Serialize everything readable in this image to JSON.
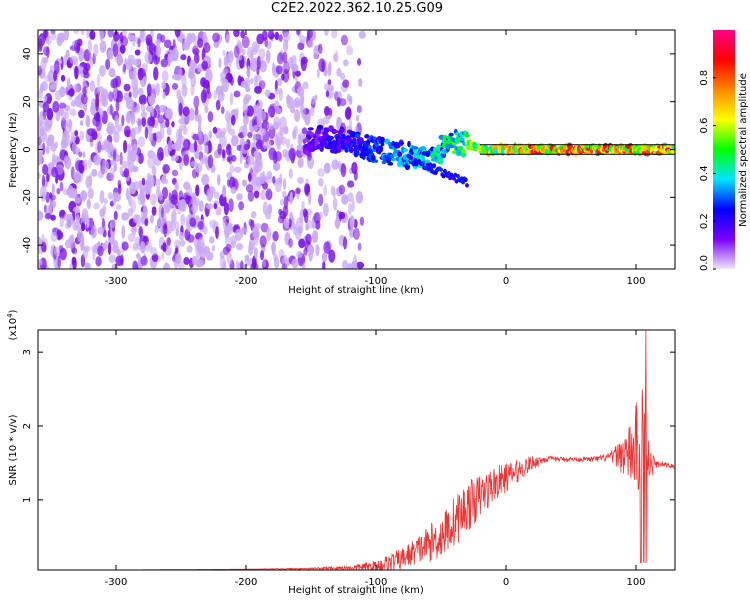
{
  "title": "C2E2.2022.362.10.25.G09",
  "colors": {
    "snr_line": "#ee3333",
    "background": "#ffffff",
    "axis": "#000000"
  },
  "chart_data": [
    {
      "type": "heatmap",
      "xlabel": "Height of straight line (km)",
      "ylabel": "Frequency (Hz)",
      "xlim": [
        -360,
        130
      ],
      "ylim": [
        -50,
        50
      ],
      "x_ticks": [
        -300,
        -200,
        -100,
        0,
        100
      ],
      "y_ticks": [
        -40,
        -20,
        0,
        20,
        40
      ],
      "colorbar": {
        "label": "Normalized spectral amplitude",
        "range": [
          0.0,
          1.0
        ],
        "ticks": [
          "0.0",
          "0.2",
          "0.4",
          "0.6",
          "0.8"
        ],
        "colors": [
          "#f0e6ff",
          "#7a00ff",
          "#0000ff",
          "#00e5ff",
          "#00ff00",
          "#ffff00",
          "#ff8800",
          "#ff0000",
          "#ff0088"
        ]
      },
      "noise_region": {
        "x_range": [
          -360,
          -110
        ],
        "freq_range": [
          -50,
          50
        ],
        "amplitude": 0.1
      },
      "signal_track": {
        "x": [
          -155,
          -140,
          -120,
          -100,
          -80,
          -60,
          -45,
          -35,
          -20,
          0,
          20,
          50,
          80,
          100,
          110,
          130
        ],
        "freq": [
          3,
          5,
          3,
          0,
          -2,
          -4,
          2,
          3,
          0,
          0,
          0,
          0,
          0,
          0,
          0,
          0
        ],
        "amplitude": [
          0.15,
          0.2,
          0.25,
          0.3,
          0.35,
          0.4,
          0.45,
          0.5,
          0.6,
          0.7,
          0.8,
          0.85,
          0.85,
          0.8,
          0.8,
          0.8
        ]
      },
      "reference_lines_hz": [
        2,
        -2
      ]
    },
    {
      "type": "line",
      "xlabel": "Height of straight line (km)",
      "ylabel": "SNR (10 * v/v)",
      "y_exponent_label": "(x10",
      "y_exponent_sup": "4",
      "y_exponent_close": ")",
      "xlim": [
        -360,
        130
      ],
      "ylim": [
        0.05,
        3.3
      ],
      "x_ticks": [
        -300,
        -200,
        -100,
        0,
        100
      ],
      "y_ticks": [
        1,
        2,
        3
      ],
      "series": [
        {
          "values_x": [
            -360,
            -300,
            -200,
            -150,
            -120,
            -100,
            -90,
            -80,
            -70,
            -60,
            -50,
            -40,
            -30,
            -20,
            -10,
            0,
            10,
            20,
            30,
            40,
            50,
            60,
            70,
            80,
            85,
            90,
            95,
            100,
            105,
            107,
            110,
            115,
            120,
            130
          ],
          "values_y": [
            0.05,
            0.05,
            0.06,
            0.07,
            0.08,
            0.1,
            0.15,
            0.2,
            0.3,
            0.4,
            0.5,
            0.7,
            0.9,
            1.05,
            1.2,
            1.3,
            1.4,
            1.5,
            1.55,
            1.55,
            1.55,
            1.55,
            1.55,
            1.58,
            1.6,
            1.62,
            1.6,
            1.7,
            1.8,
            2.3,
            1.5,
            1.48,
            1.48,
            1.45
          ],
          "noise_amplitude": [
            0,
            0,
            0,
            0.01,
            0.03,
            0.08,
            0.12,
            0.15,
            0.18,
            0.25,
            0.3,
            0.35,
            0.35,
            0.3,
            0.25,
            0.2,
            0.15,
            0.1,
            0.05,
            0.03,
            0.03,
            0.03,
            0.04,
            0.06,
            0.15,
            0.3,
            0.4,
            0.6,
            0.8,
            0.9,
            0.3,
            0.05,
            0.03,
            0.03
          ]
        }
      ]
    }
  ]
}
